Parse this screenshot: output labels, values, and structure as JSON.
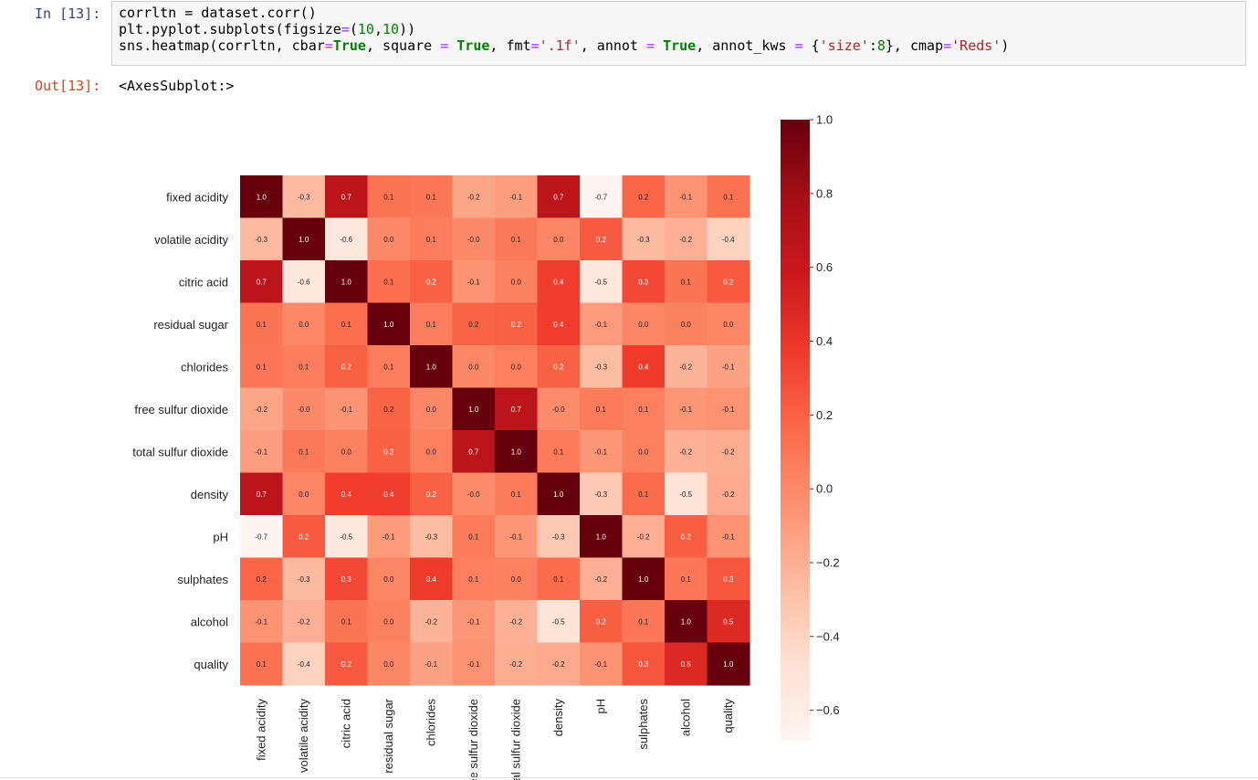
{
  "cell": {
    "in_prompt": "In [13]:",
    "out_prompt": "Out[13]:",
    "output_text": "<AxesSubplot:>",
    "code_line1": "corrltn = dataset.corr()",
    "code_line2_a": "plt.pyplot.subplots(figsize",
    "code_line2_b": "=",
    "code_line2_c": "(",
    "code_line2_d": "10",
    "code_line2_e": ",",
    "code_line2_f": "10",
    "code_line2_g": "))",
    "code_line3": "sns.heatmap(corrltn, cbar=True, square = True, fmt='.1f', annot = True, annot_kws = {'size':8}, cmap='Reds')"
  },
  "chart_data": {
    "type": "heatmap",
    "colormap": "Reds",
    "annotation_format": ".1f",
    "colorbar": true,
    "colorbar_range": [
      -0.68,
      1.0
    ],
    "colorbar_ticks": [
      "1.0",
      "0.8",
      "0.6",
      "0.4",
      "0.2",
      "0.0",
      "−0.2",
      "−0.4",
      "−0.6"
    ],
    "colorbar_tick_values": [
      1.0,
      0.8,
      0.6,
      0.4,
      0.2,
      0.0,
      -0.2,
      -0.4,
      -0.6
    ],
    "rows": [
      "fixed acidity",
      "volatile acidity",
      "citric acid",
      "residual sugar",
      "chlorides",
      "free sulfur dioxide",
      "total sulfur dioxide",
      "density",
      "pH",
      "sulphates",
      "alcohol",
      "quality"
    ],
    "columns": [
      "fixed acidity",
      "volatile acidity",
      "citric acid",
      "residual sugar",
      "chlorides",
      "free sulfur dioxide",
      "total sulfur dioxide",
      "density",
      "pH",
      "sulphates",
      "alcohol",
      "quality"
    ],
    "values": [
      [
        1.0,
        -0.26,
        0.67,
        0.11,
        0.09,
        -0.15,
        -0.11,
        0.67,
        -0.68,
        0.18,
        -0.06,
        0.12
      ],
      [
        -0.26,
        1.0,
        -0.55,
        0.0,
        0.06,
        -0.01,
        0.08,
        0.02,
        0.23,
        -0.26,
        -0.2,
        -0.39
      ],
      [
        0.67,
        -0.55,
        1.0,
        0.14,
        0.2,
        -0.06,
        0.04,
        0.36,
        -0.54,
        0.31,
        0.11,
        0.23
      ],
      [
        0.11,
        0.0,
        0.14,
        1.0,
        0.06,
        0.19,
        0.2,
        0.36,
        -0.09,
        0.01,
        0.04,
        0.01
      ],
      [
        0.09,
        0.06,
        0.2,
        0.06,
        1.0,
        0.01,
        0.05,
        0.2,
        -0.27,
        0.37,
        -0.22,
        -0.13
      ],
      [
        -0.15,
        -0.01,
        -0.06,
        0.19,
        0.01,
        1.0,
        0.67,
        -0.02,
        0.07,
        0.05,
        -0.07,
        -0.05
      ],
      [
        -0.11,
        0.08,
        0.04,
        0.2,
        0.05,
        0.67,
        1.0,
        0.07,
        -0.07,
        0.04,
        -0.21,
        -0.19
      ],
      [
        0.67,
        0.02,
        0.36,
        0.36,
        0.2,
        -0.02,
        0.07,
        1.0,
        -0.34,
        0.15,
        -0.5,
        -0.17
      ],
      [
        -0.68,
        0.23,
        -0.54,
        -0.09,
        -0.27,
        0.07,
        -0.07,
        -0.34,
        1.0,
        -0.2,
        0.21,
        -0.06
      ],
      [
        0.18,
        -0.26,
        0.31,
        0.01,
        0.37,
        0.05,
        0.04,
        0.15,
        -0.2,
        1.0,
        0.09,
        0.25
      ],
      [
        -0.06,
        -0.2,
        0.11,
        0.04,
        -0.22,
        -0.07,
        -0.21,
        -0.5,
        0.21,
        0.09,
        1.0,
        0.48
      ],
      [
        0.12,
        -0.39,
        0.23,
        0.01,
        -0.13,
        -0.05,
        -0.19,
        -0.17,
        -0.06,
        0.25,
        0.48,
        1.0
      ]
    ],
    "annotations": [
      [
        "1.0",
        "-0.3",
        "0.7",
        "0.1",
        "0.1",
        "-0.2",
        "-0.1",
        "0.7",
        "-0.7",
        "0.2",
        "-0.1",
        "0.1"
      ],
      [
        "-0.3",
        "1.0",
        "-0.6",
        "0.0",
        "0.1",
        "-0.0",
        "0.1",
        "0.0",
        "0.2",
        "-0.3",
        "-0.2",
        "-0.4"
      ],
      [
        "0.7",
        "-0.6",
        "1.0",
        "0.1",
        "0.2",
        "-0.1",
        "0.0",
        "0.4",
        "-0.5",
        "0.3",
        "0.1",
        "0.2"
      ],
      [
        "0.1",
        "0.0",
        "0.1",
        "1.0",
        "0.1",
        "0.2",
        "0.2",
        "0.4",
        "-0.1",
        "0.0",
        "0.0",
        "0.0"
      ],
      [
        "0.1",
        "0.1",
        "0.2",
        "0.1",
        "1.0",
        "0.0",
        "0.0",
        "0.2",
        "-0.3",
        "0.4",
        "-0.2",
        "-0.1"
      ],
      [
        "-0.2",
        "-0.0",
        "-0.1",
        "0.2",
        "0.0",
        "1.0",
        "0.7",
        "-0.0",
        "0.1",
        "0.1",
        "-0.1",
        "-0.1"
      ],
      [
        "-0.1",
        "0.1",
        "0.0",
        "0.2",
        "0.0",
        "0.7",
        "1.0",
        "0.1",
        "-0.1",
        "0.0",
        "-0.2",
        "-0.2"
      ],
      [
        "0.7",
        "0.0",
        "0.4",
        "0.4",
        "0.2",
        "-0.0",
        "0.1",
        "1.0",
        "-0.3",
        "0.1",
        "-0.5",
        "-0.2"
      ],
      [
        "-0.7",
        "0.2",
        "-0.5",
        "-0.1",
        "-0.3",
        "0.1",
        "-0.1",
        "-0.3",
        "1.0",
        "-0.2",
        "0.2",
        "-0.1"
      ],
      [
        "0.2",
        "-0.3",
        "0.3",
        "0.0",
        "0.4",
        "0.1",
        "0.0",
        "0.1",
        "-0.2",
        "1.0",
        "0.1",
        "0.3"
      ],
      [
        "-0.1",
        "-0.2",
        "0.1",
        "0.0",
        "-0.2",
        "-0.1",
        "-0.2",
        "-0.5",
        "0.2",
        "0.1",
        "1.0",
        "0.5"
      ],
      [
        "0.1",
        "-0.4",
        "0.2",
        "0.0",
        "-0.1",
        "-0.1",
        "-0.2",
        "-0.2",
        "-0.1",
        "0.3",
        "0.5",
        "1.0"
      ]
    ]
  }
}
